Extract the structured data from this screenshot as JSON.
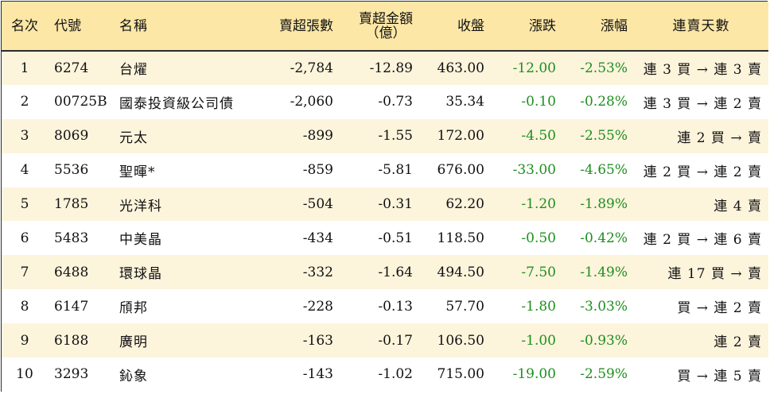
{
  "table": {
    "headers": {
      "rank": "名次",
      "code": "代號",
      "name": "名稱",
      "net_sell_lots": "賣超張數",
      "net_sell_amount_line1": "賣超金額",
      "net_sell_amount_line2": "（億）",
      "close": "收盤",
      "change": "漲跌",
      "pct": "漲幅",
      "streak": "連賣天數"
    },
    "rows": [
      {
        "rank": "1",
        "code": "6274",
        "name": "台燿",
        "net_sell_lots": "-2,784",
        "net_sell_amount": "-12.89",
        "close": "463.00",
        "change": "-12.00",
        "pct": "-2.53%",
        "streak": "連 3 買 → 連 3 賣"
      },
      {
        "rank": "2",
        "code": "00725B",
        "name": "國泰投資級公司債",
        "net_sell_lots": "-2,060",
        "net_sell_amount": "-0.73",
        "close": "35.34",
        "change": "-0.10",
        "pct": "-0.28%",
        "streak": "連 3 買 → 連 2 賣"
      },
      {
        "rank": "3",
        "code": "8069",
        "name": "元太",
        "net_sell_lots": "-899",
        "net_sell_amount": "-1.55",
        "close": "172.00",
        "change": "-4.50",
        "pct": "-2.55%",
        "streak": "連 2 買 → 賣"
      },
      {
        "rank": "4",
        "code": "5536",
        "name": "聖暉*",
        "net_sell_lots": "-859",
        "net_sell_amount": "-5.81",
        "close": "676.00",
        "change": "-33.00",
        "pct": "-4.65%",
        "streak": "連 2 買 → 連 2 賣"
      },
      {
        "rank": "5",
        "code": "1785",
        "name": "光洋科",
        "net_sell_lots": "-504",
        "net_sell_amount": "-0.31",
        "close": "62.20",
        "change": "-1.20",
        "pct": "-1.89%",
        "streak": "連 4 賣"
      },
      {
        "rank": "6",
        "code": "5483",
        "name": "中美晶",
        "net_sell_lots": "-434",
        "net_sell_amount": "-0.51",
        "close": "118.50",
        "change": "-0.50",
        "pct": "-0.42%",
        "streak": "連 2 買 → 連 6 賣"
      },
      {
        "rank": "7",
        "code": "6488",
        "name": "環球晶",
        "net_sell_lots": "-332",
        "net_sell_amount": "-1.64",
        "close": "494.50",
        "change": "-7.50",
        "pct": "-1.49%",
        "streak": "連 17 買 → 賣"
      },
      {
        "rank": "8",
        "code": "6147",
        "name": "頎邦",
        "net_sell_lots": "-228",
        "net_sell_amount": "-0.13",
        "close": "57.70",
        "change": "-1.80",
        "pct": "-3.03%",
        "streak": "買 → 連 2 賣"
      },
      {
        "rank": "9",
        "code": "6188",
        "name": "廣明",
        "net_sell_lots": "-163",
        "net_sell_amount": "-0.17",
        "close": "106.50",
        "change": "-1.00",
        "pct": "-0.93%",
        "streak": "連 2 賣"
      },
      {
        "rank": "10",
        "code": "3293",
        "name": "鈊象",
        "net_sell_lots": "-143",
        "net_sell_amount": "-1.02",
        "close": "715.00",
        "change": "-19.00",
        "pct": "-2.59%",
        "streak": "買 → 連 5 賣"
      }
    ]
  },
  "colors": {
    "header_bg": "#fce7a6",
    "stripe_bg": "#fdf4dc",
    "negative_green": "#1e8f1e",
    "border": "#2b2b2b"
  }
}
